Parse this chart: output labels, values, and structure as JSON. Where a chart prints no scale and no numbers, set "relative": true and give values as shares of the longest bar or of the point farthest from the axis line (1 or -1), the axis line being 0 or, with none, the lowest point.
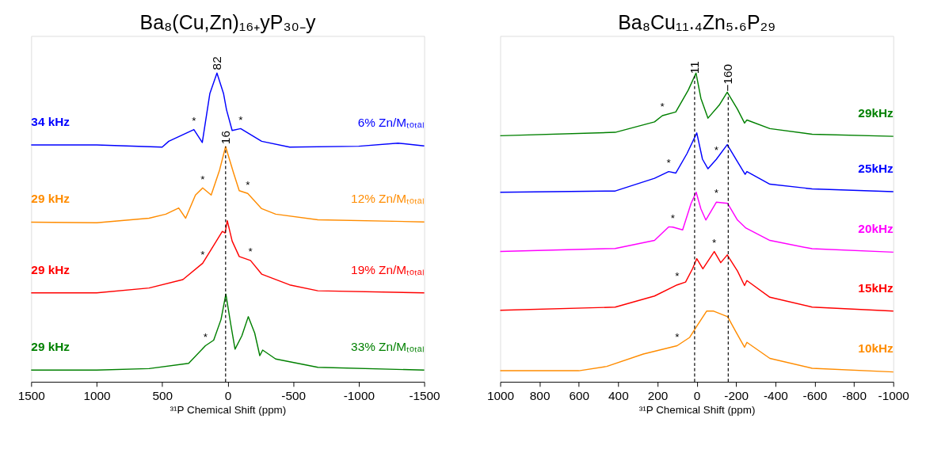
{
  "chart_data": [
    {
      "type": "line",
      "relative": true,
      "title": "Ba₈(Cu,Zn)₁₆₊yP₃₀₋y",
      "xlabel": "³¹P Chemical Shift (ppm)",
      "xlim": [
        1500,
        -1500
      ],
      "xticks": [
        1500,
        1000,
        500,
        0,
        -500,
        -1000,
        -1500
      ],
      "legend": false,
      "grid": false,
      "series": [
        {
          "name": "34 kHz",
          "color": "#0000ff",
          "x": [
            1500,
            1000,
            500,
            450,
            258,
            194,
            136,
            82,
            32,
            9,
            -34,
            -99,
            -154,
            -259,
            -473,
            -1000,
            -1300,
            -1500
          ],
          "values": [
            0.767,
            0.767,
            0.76,
            0.779,
            0.817,
            0.775,
            0.934,
            1.0,
            0.934,
            0.881,
            0.814,
            0.82,
            0.806,
            0.779,
            0.76,
            0.763,
            0.773,
            0.764
          ]
        },
        {
          "name": "29 kHz",
          "color": "#ff8c00",
          "x": [
            1500,
            1000,
            600,
            472,
            374,
            321,
            246,
            191,
            126,
            62,
            16,
            -45,
            -88,
            -153,
            -259,
            -366,
            -688,
            -1500
          ],
          "values": [
            0.517,
            0.515,
            0.53,
            0.543,
            0.563,
            0.53,
            0.605,
            0.628,
            0.605,
            0.686,
            0.762,
            0.676,
            0.619,
            0.61,
            0.561,
            0.543,
            0.525,
            0.518
          ]
        },
        {
          "name": "29 kHz",
          "color": "#ff0000",
          "x": [
            1500,
            1000,
            600,
            342,
            191,
            107,
            41,
            20,
            3,
            -34,
            -88,
            -174,
            -259,
            -473,
            -688,
            -1500
          ],
          "values": [
            0.288,
            0.288,
            0.304,
            0.331,
            0.384,
            0.442,
            0.487,
            0.482,
            0.522,
            0.456,
            0.406,
            0.393,
            0.349,
            0.314,
            0.295,
            0.288
          ]
        },
        {
          "name": "29 kHz",
          "color": "#008000",
          "x": [
            1500,
            1000,
            600,
            298,
            170,
            107,
            51,
            14,
            -24,
            -56,
            -108,
            -157,
            -206,
            -245,
            -267,
            -366,
            -688,
            -1500
          ],
          "values": [
            0.038,
            0.038,
            0.043,
            0.06,
            0.117,
            0.135,
            0.202,
            0.284,
            0.185,
            0.106,
            0.149,
            0.211,
            0.158,
            0.085,
            0.103,
            0.074,
            0.047,
            0.038
          ]
        }
      ],
      "ref_lines": [
        {
          "axis": "x",
          "value": 16,
          "label": "16",
          "color": "#000000",
          "line_style": "dashed"
        }
      ],
      "annotations": [
        "6% Zn/Mₜₒₜₐₗ",
        "12% Zn/Mₜₒₜₐₗ",
        "19% Zn/Mₜₒₜₐₗ",
        "33% Zn/Mₜₒₜₐₗ",
        {
          "text": "82",
          "x": 82,
          "y": 1.0
        },
        {
          "text": "*",
          "x": 258,
          "y": 0.817
        },
        {
          "text": "*",
          "x": -99,
          "y": 0.82
        },
        {
          "text": "*",
          "x": 191,
          "y": 0.628
        },
        {
          "text": "*",
          "x": -153,
          "y": 0.61
        },
        {
          "text": "*",
          "x": 191,
          "y": 0.384
        },
        {
          "text": "*",
          "x": -174,
          "y": 0.393
        },
        {
          "text": "*",
          "x": 170,
          "y": 0.117
        }
      ]
    },
    {
      "type": "line",
      "relative": true,
      "title": "Ba₈Cu₁₁.₄Zn₅.₆P₂₉",
      "xlabel": "³¹P Chemical Shift (ppm)",
      "xlim": [
        1000,
        -1000
      ],
      "xticks": [
        1000,
        800,
        600,
        400,
        200,
        0,
        -200,
        -400,
        -600,
        -800,
        -1000
      ],
      "legend": false,
      "grid": false,
      "series": [
        {
          "name": "29kHz",
          "color": "#008000",
          "x": [
            1000,
            415,
            215,
            175,
            107,
            43,
            4,
            -21,
            -57,
            -114,
            -155,
            -207,
            -243,
            -255,
            -372,
            -587,
            -1000
          ],
          "values": [
            0.797,
            0.808,
            0.842,
            0.862,
            0.874,
            0.945,
            1.0,
            0.918,
            0.854,
            0.896,
            0.938,
            0.883,
            0.838,
            0.848,
            0.82,
            0.802,
            0.795
          ]
        },
        {
          "name": "25kHz",
          "color": "#0000ff",
          "x": [
            1000,
            415,
            215,
            143,
            107,
            50,
            0,
            -29,
            -57,
            -100,
            -155,
            -207,
            -246,
            -255,
            -372,
            -587,
            -1000
          ],
          "values": [
            0.614,
            0.618,
            0.659,
            0.681,
            0.676,
            0.739,
            0.806,
            0.721,
            0.69,
            0.721,
            0.768,
            0.713,
            0.672,
            0.681,
            0.64,
            0.625,
            0.616
          ]
        },
        {
          "name": "20kHz",
          "color": "#ff00ff",
          "x": [
            1000,
            415,
            215,
            143,
            122,
            72,
            29,
            3,
            -21,
            -46,
            -100,
            -157,
            -207,
            -250,
            -372,
            -587,
            -1000
          ],
          "values": [
            0.422,
            0.432,
            0.458,
            0.502,
            0.501,
            0.492,
            0.578,
            0.614,
            0.56,
            0.524,
            0.582,
            0.578,
            0.524,
            0.498,
            0.458,
            0.431,
            0.42
          ]
        },
        {
          "name": "15kHz",
          "color": "#ff0000",
          "x": [
            1000,
            415,
            215,
            100,
            57,
            21,
            0,
            -31,
            -89,
            -122,
            -155,
            -207,
            -243,
            -255,
            -372,
            -587,
            -1000
          ],
          "values": [
            0.232,
            0.242,
            0.278,
            0.314,
            0.323,
            0.367,
            0.399,
            0.366,
            0.422,
            0.386,
            0.411,
            0.359,
            0.312,
            0.328,
            0.274,
            0.242,
            0.229
          ]
        },
        {
          "name": "10kHz",
          "color": "#ff8c00",
          "x": [
            1000,
            600,
            458,
            272,
            100,
            36,
            0,
            -50,
            -86,
            -157,
            -200,
            -243,
            -255,
            -372,
            -587,
            -1000
          ],
          "values": [
            0.036,
            0.036,
            0.05,
            0.09,
            0.117,
            0.144,
            0.18,
            0.229,
            0.229,
            0.211,
            0.161,
            0.112,
            0.128,
            0.076,
            0.044,
            0.032
          ]
        }
      ],
      "ref_lines": [
        {
          "axis": "x",
          "value": 11,
          "label": "11",
          "color": "#000000",
          "line_style": "dashed"
        },
        {
          "axis": "x",
          "value": -160,
          "label": "−160",
          "color": "#000000",
          "line_style": "dashed"
        }
      ],
      "annotations": [
        {
          "text": "*",
          "x": 175,
          "y": 0.862
        },
        {
          "text": "*",
          "x": 143,
          "y": 0.681
        },
        {
          "text": "*",
          "x": -100,
          "y": 0.721
        },
        {
          "text": "*",
          "x": 122,
          "y": 0.501
        },
        {
          "text": "*",
          "x": -100,
          "y": 0.582
        },
        {
          "text": "*",
          "x": -89,
          "y": 0.422
        },
        {
          "text": "*",
          "x": 100,
          "y": 0.314
        },
        {
          "text": "*",
          "x": 100,
          "y": 0.117
        }
      ]
    }
  ]
}
